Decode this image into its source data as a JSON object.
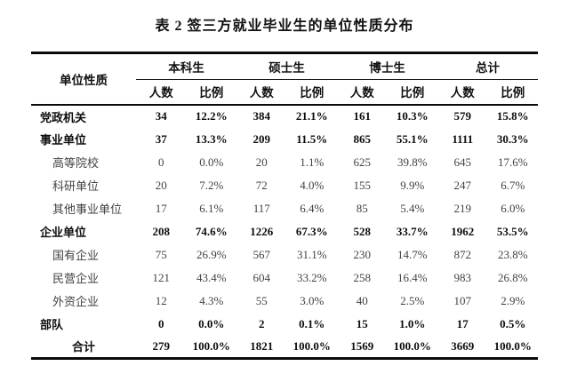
{
  "title": "表 2 签三方就业毕业生的单位性质分布",
  "table": {
    "row_header_label": "单位性质",
    "groups": [
      {
        "label": "本科生"
      },
      {
        "label": "硕士生"
      },
      {
        "label": "博士生"
      },
      {
        "label": "总计"
      }
    ],
    "subheaders": [
      "人数",
      "比例"
    ],
    "rows": [
      {
        "label": "党政机关",
        "style": "category",
        "values": [
          "34",
          "12.2%",
          "384",
          "21.1%",
          "161",
          "10.3%",
          "579",
          "15.8%"
        ]
      },
      {
        "label": "事业单位",
        "style": "category",
        "values": [
          "37",
          "13.3%",
          "209",
          "11.5%",
          "865",
          "55.1%",
          "1111",
          "30.3%"
        ]
      },
      {
        "label": "高等院校",
        "style": "sub",
        "values": [
          "0",
          "0.0%",
          "20",
          "1.1%",
          "625",
          "39.8%",
          "645",
          "17.6%"
        ]
      },
      {
        "label": "科研单位",
        "style": "sub",
        "values": [
          "20",
          "7.2%",
          "72",
          "4.0%",
          "155",
          "9.9%",
          "247",
          "6.7%"
        ]
      },
      {
        "label": "其他事业单位",
        "style": "sub",
        "values": [
          "17",
          "6.1%",
          "117",
          "6.4%",
          "85",
          "5.4%",
          "219",
          "6.0%"
        ]
      },
      {
        "label": "企业单位",
        "style": "category",
        "values": [
          "208",
          "74.6%",
          "1226",
          "67.3%",
          "528",
          "33.7%",
          "1962",
          "53.5%"
        ]
      },
      {
        "label": "国有企业",
        "style": "sub",
        "values": [
          "75",
          "26.9%",
          "567",
          "31.1%",
          "230",
          "14.7%",
          "872",
          "23.8%"
        ]
      },
      {
        "label": "民营企业",
        "style": "sub",
        "values": [
          "121",
          "43.4%",
          "604",
          "33.2%",
          "258",
          "16.4%",
          "983",
          "26.8%"
        ]
      },
      {
        "label": "外资企业",
        "style": "sub",
        "values": [
          "12",
          "4.3%",
          "55",
          "3.0%",
          "40",
          "2.5%",
          "107",
          "2.9%"
        ]
      },
      {
        "label": "部队",
        "style": "category",
        "values": [
          "0",
          "0.0%",
          "2",
          "0.1%",
          "15",
          "1.0%",
          "17",
          "0.5%"
        ]
      },
      {
        "label": "合计",
        "style": "total",
        "values": [
          "279",
          "100.0%",
          "1821",
          "100.0%",
          "1569",
          "100.0%",
          "3669",
          "100.0%"
        ]
      }
    ]
  },
  "colors": {
    "background": "#ffffff",
    "text": "#101010",
    "sub_text": "#424242",
    "rule": "#0a0a0a"
  }
}
